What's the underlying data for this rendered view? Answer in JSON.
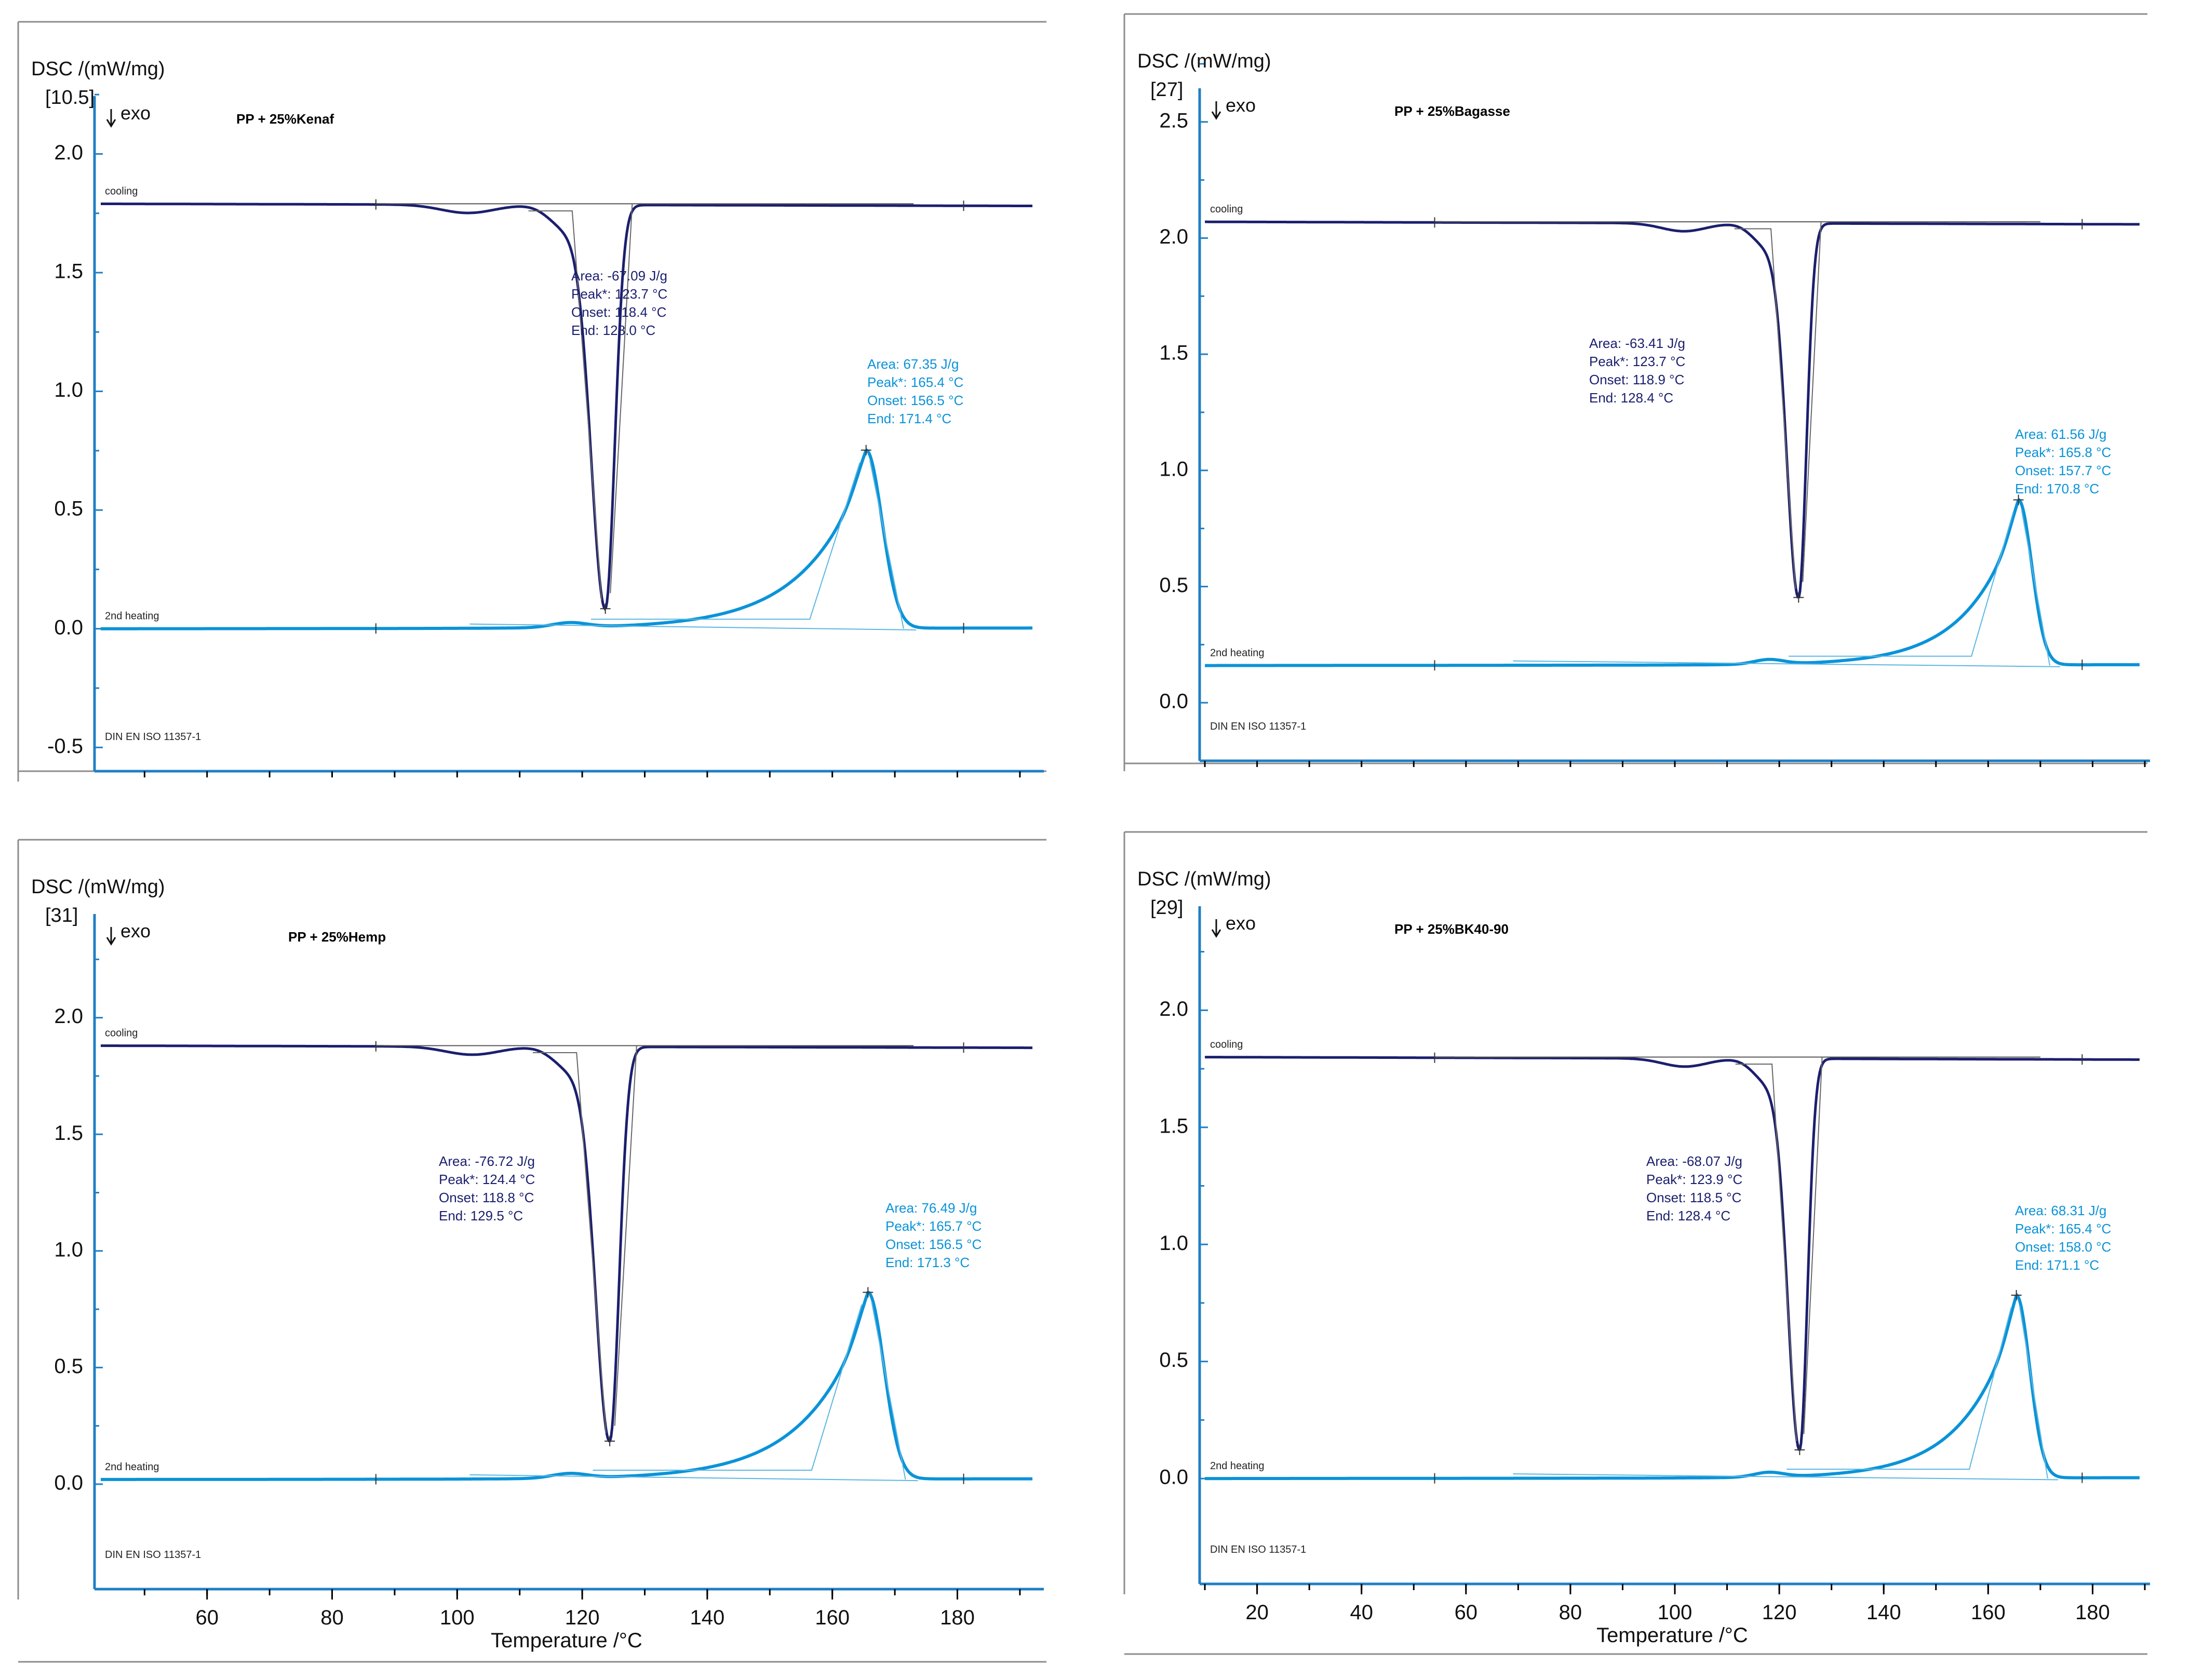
{
  "chart_data": [
    {
      "type": "line",
      "title": "PP + 25%Kenaf",
      "reference": "[10.5]",
      "exo_label": "exo",
      "ylabel": "DSC /(mW/mg)",
      "xlabel": "",
      "standard": "DIN EN ISO 11357-1",
      "ylim": [
        -0.6,
        2.2
      ],
      "xlim": [
        42,
        193
      ],
      "yticks": [
        "2.0",
        "1.5",
        "1.0",
        "0.5",
        "0.0",
        "-0.5"
      ],
      "xticks": [],
      "series": [
        {
          "name": "cooling",
          "base": 1.79,
          "peak_x": 123.7,
          "peak_y": 0.1
        },
        {
          "name": "2nd heating",
          "base": 0.0,
          "peak_x": 165.4,
          "peak_y": 0.75
        }
      ],
      "annotations": [
        {
          "series": "cooling",
          "lines": [
            "Area:    -67.09 J/g",
            "Peak*:  123.7 °C",
            "Onset:  118.4 °C",
            "End:     128.0 °C"
          ]
        },
        {
          "series": "2nd heating",
          "lines": [
            "Area:     67.35 J/g",
            "Peak*:  165.4 °C",
            "Onset:  156.5 °C",
            "End:     171.4 °C"
          ]
        }
      ]
    },
    {
      "type": "line",
      "title": "PP + 25%Bagasse",
      "reference": "[27]",
      "exo_label": "exo",
      "ylabel": "DSC /(mW/mg)",
      "xlabel": "",
      "standard": "DIN EN ISO 11357-1",
      "ylim": [
        -0.25,
        2.6
      ],
      "xlim": [
        9,
        190
      ],
      "yticks": [
        "2.5",
        "2.0",
        "1.5",
        "1.0",
        "0.5",
        "0.0"
      ],
      "xticks": [],
      "series": [
        {
          "name": "cooling",
          "base": 2.07,
          "peak_x": 123.7,
          "peak_y": 0.47
        },
        {
          "name": "2nd heating",
          "base": 0.16,
          "peak_x": 165.8,
          "peak_y": 0.87
        }
      ],
      "annotations": [
        {
          "series": "cooling",
          "lines": [
            "Area:    -63.41 J/g",
            "Peak*:  123.7 °C",
            "Onset:  118.9 °C",
            "End:     128.4 °C"
          ]
        },
        {
          "series": "2nd heating",
          "lines": [
            "Area:     61.56 J/g",
            "Peak*:  165.8 °C",
            "Onset:  157.7 °C",
            "End:     170.8 °C"
          ]
        }
      ]
    },
    {
      "type": "line",
      "title": "PP + 25%Hemp",
      "reference": "[31]",
      "exo_label": "exo",
      "ylabel": "DSC /(mW/mg)",
      "xlabel": "Temperature /°C",
      "standard": "DIN EN ISO 11357-1",
      "ylim": [
        -0.45,
        2.4
      ],
      "xlim": [
        42,
        193
      ],
      "yticks": [
        "2.0",
        "1.5",
        "1.0",
        "0.5",
        "0.0"
      ],
      "xticks": [
        "60",
        "80",
        "100",
        "120",
        "140",
        "160",
        "180"
      ],
      "series": [
        {
          "name": "cooling",
          "base": 1.88,
          "peak_x": 124.4,
          "peak_y": 0.2
        },
        {
          "name": "2nd heating",
          "base": 0.02,
          "peak_x": 165.7,
          "peak_y": 0.82
        }
      ],
      "annotations": [
        {
          "series": "cooling",
          "lines": [
            "Area:    -76.72 J/g",
            "Peak*:  124.4 °C",
            "Onset:  118.8 °C",
            "End:     129.5 °C"
          ]
        },
        {
          "series": "2nd heating",
          "lines": [
            "Area:     76.49 J/g",
            "Peak*:  165.7 °C",
            "Onset:  156.5 °C",
            "End:     171.3 °C"
          ]
        }
      ]
    },
    {
      "type": "line",
      "title": "PP + 25%BK40-90",
      "reference": "[29]",
      "exo_label": "exo",
      "ylabel": "DSC /(mW/mg)",
      "xlabel": "Temperature /°C",
      "standard": "DIN EN ISO 11357-1",
      "ylim": [
        -0.45,
        2.4
      ],
      "xlim": [
        9,
        190
      ],
      "yticks": [
        "2.0",
        "1.5",
        "1.0",
        "0.5",
        "0.0"
      ],
      "xticks": [
        "20",
        "40",
        "60",
        "80",
        "100",
        "120",
        "140",
        "160",
        "180"
      ],
      "series": [
        {
          "name": "cooling",
          "base": 1.8,
          "peak_x": 123.9,
          "peak_y": 0.14
        },
        {
          "name": "2nd heating",
          "base": 0.0,
          "peak_x": 165.4,
          "peak_y": 0.78
        }
      ],
      "annotations": [
        {
          "series": "cooling",
          "lines": [
            "Area:    -68.07 J/g",
            "Peak*:  123.9 °C",
            "Onset:  118.5 °C",
            "End:     128.4 °C"
          ]
        },
        {
          "series": "2nd heating",
          "lines": [
            "Area:     68.31 J/g",
            "Peak*:  165.4 °C",
            "Onset:  158.0 °C",
            "End:     171.1 °C"
          ]
        }
      ]
    }
  ],
  "colors": {
    "cooling": "#1b1f6e",
    "heating": "#0a93d8",
    "axis": "#1f7fc4"
  }
}
